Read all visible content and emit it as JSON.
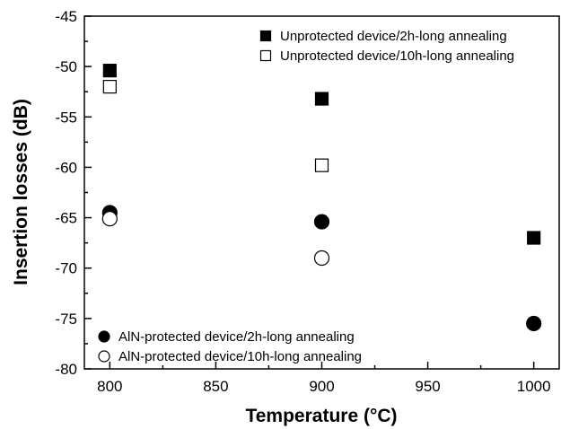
{
  "chart_data": {
    "type": "scatter",
    "title": "",
    "xlabel": "Temperature (°C)",
    "ylabel": "Insertion losses (dB)",
    "xlim": [
      788,
      1012
    ],
    "ylim": [
      -80,
      -45
    ],
    "xticks": [
      800,
      850,
      900,
      950,
      1000
    ],
    "yticks": [
      -80,
      -75,
      -70,
      -65,
      -60,
      -55,
      -50,
      -45
    ],
    "grid": false,
    "series": [
      {
        "name": "Unprotected device/2h-long annealing",
        "marker": "square",
        "filled": true,
        "color": "#000000",
        "x": [
          800,
          900,
          1000
        ],
        "y": [
          -50.4,
          -53.2,
          -67.0
        ]
      },
      {
        "name": "Unprotected device/10h-long annealing",
        "marker": "square",
        "filled": false,
        "color": "#000000",
        "x": [
          800,
          900
        ],
        "y": [
          -52.0,
          -59.8
        ]
      },
      {
        "name": "AlN-protected device/2h-long annealing",
        "marker": "circle",
        "filled": true,
        "color": "#000000",
        "x": [
          800,
          900,
          1000
        ],
        "y": [
          -64.5,
          -65.4,
          -75.5
        ]
      },
      {
        "name": "AlN-protected device/10h-long annealing",
        "marker": "circle",
        "filled": false,
        "color": "#000000",
        "x": [
          800,
          900
        ],
        "y": [
          -65.1,
          -69.0
        ]
      }
    ],
    "legends": [
      {
        "placement": "top-right",
        "series": [
          0,
          1
        ]
      },
      {
        "placement": "bottom-left",
        "series": [
          2,
          3
        ]
      }
    ]
  }
}
